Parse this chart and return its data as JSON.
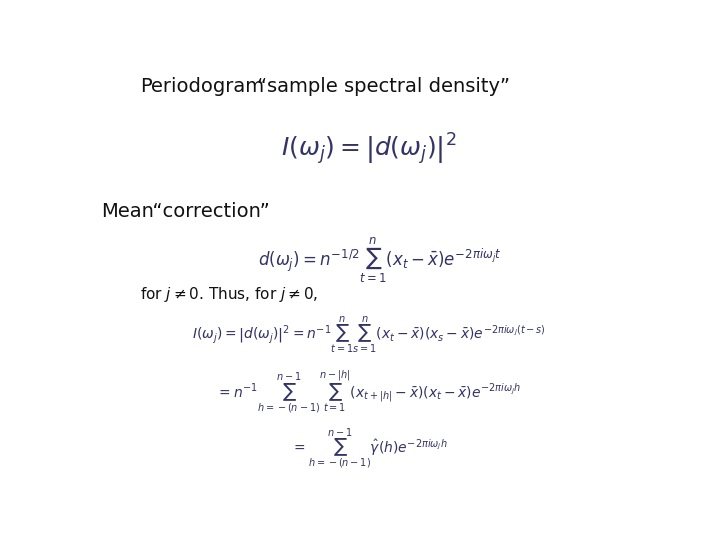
{
  "title_left": "Periodogram",
  "title_right": "“sample spectral density”",
  "section_label": "Mean“correction”",
  "bg_color": "#ffffff",
  "font_size_title": 14,
  "font_size_section": 14,
  "font_size_text": 11
}
